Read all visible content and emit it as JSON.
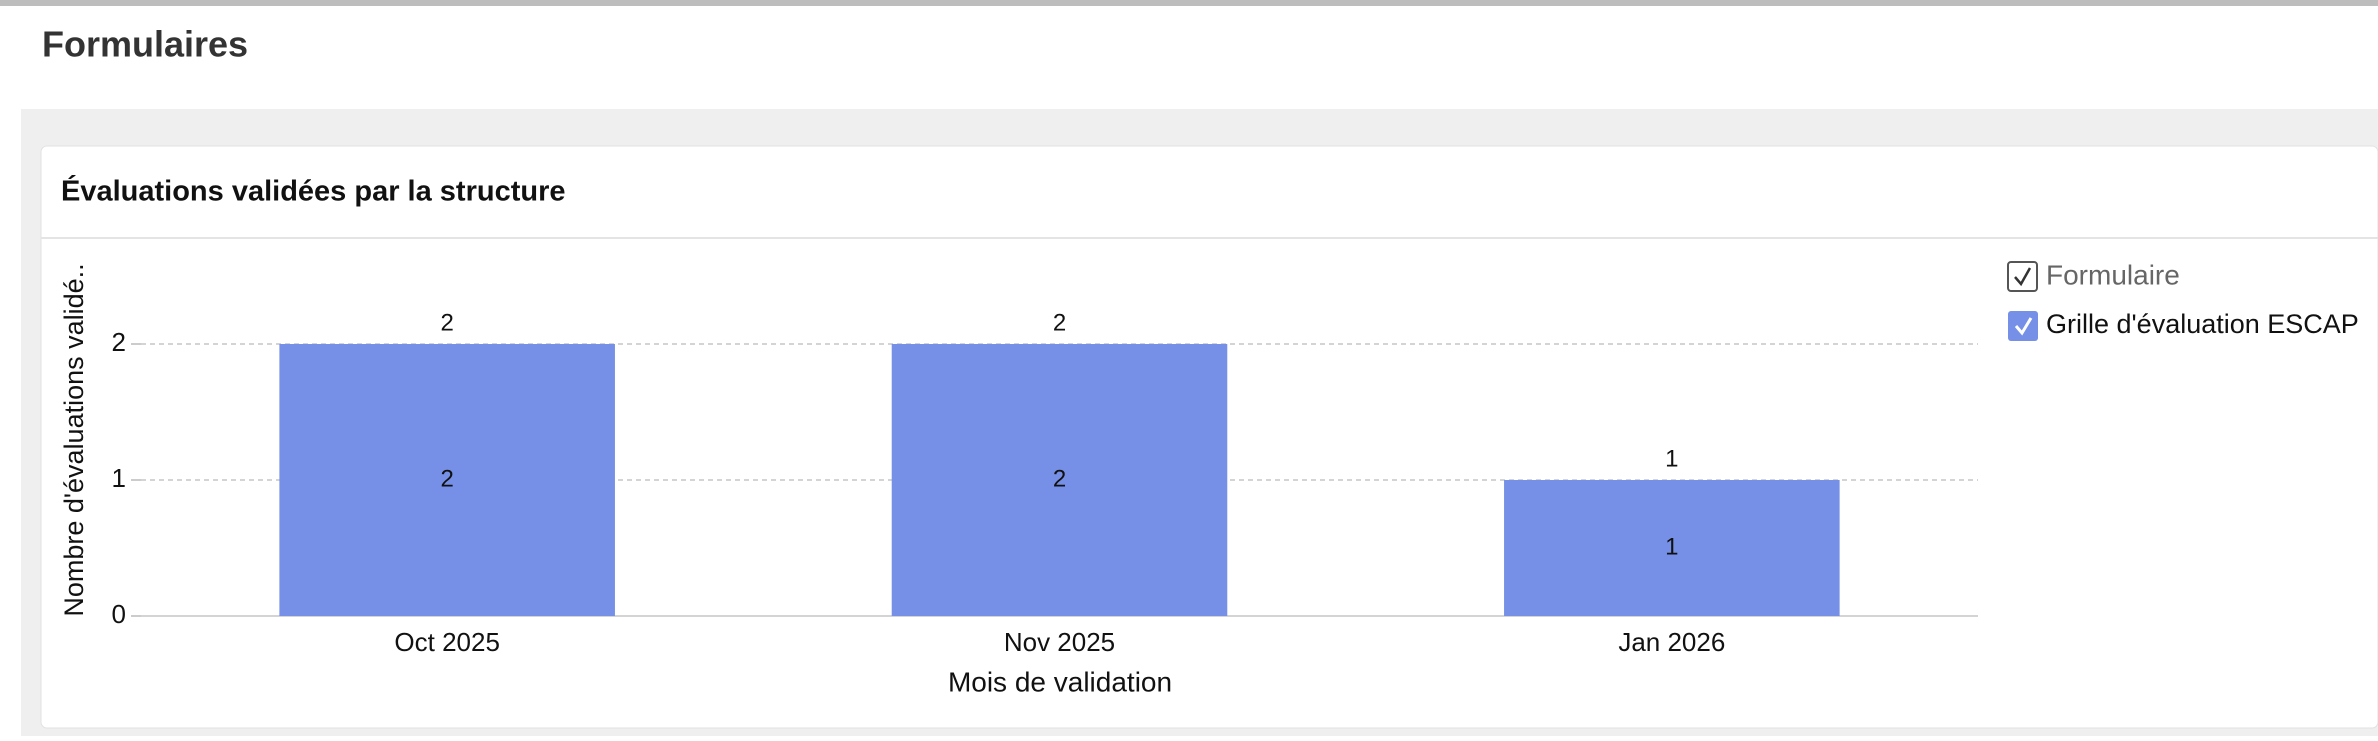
{
  "header": {
    "title": "Formulaires"
  },
  "chart_data": {
    "type": "bar",
    "title": "Évaluations validées par la structure",
    "x_label": "Mois de validation",
    "y_label": "Nombre d'évaluations validé..",
    "categories": [
      "Oct 2025",
      "Nov 2025",
      "Jan 2026"
    ],
    "legend_title": "Formulaire",
    "series": [
      {
        "name": "Grille d'évaluation ESCAP",
        "color": "#7590e6",
        "values": [
          2,
          2,
          1
        ]
      }
    ],
    "ylim": [
      0,
      2.5
    ],
    "yticks": [
      0,
      1,
      2
    ],
    "grid": true
  }
}
